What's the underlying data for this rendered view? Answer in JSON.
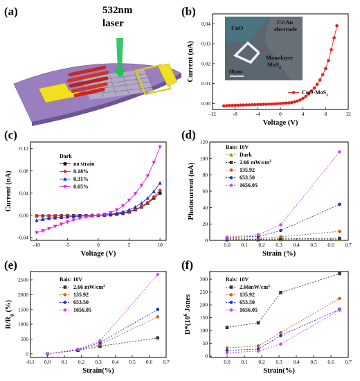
{
  "panel_labels": [
    "(a)",
    "(b)",
    "(c)",
    "(d)",
    "(e)",
    "(f)"
  ],
  "schematic": {
    "laser_label_1": "532nm",
    "laser_label_2": "laser",
    "colors": {
      "substrate": "#9a7fc0",
      "electrode": "#f0e020",
      "cuo": "#c8281e",
      "laser": "#22c05a"
    }
  },
  "inset": {
    "cuo": "CuO",
    "electrode_1": "Cr/Au",
    "electrode_2": "electrode",
    "mos2_1": "Monolayer",
    "mos2_2": "MoS",
    "mos2_sub": "2",
    "scale": "10μm"
  },
  "chart_data": [
    {
      "id": "b",
      "type": "line",
      "xlabel": "Voltage (V)",
      "ylabel": "Current (nA)",
      "xlim": [
        -12,
        12
      ],
      "ylim": [
        -0.003,
        0.045
      ],
      "xticks": [
        -12,
        -8,
        -4,
        0,
        4,
        8,
        12
      ],
      "yticks": [
        0.0,
        0.01,
        0.02,
        0.03,
        0.04
      ],
      "tick_decimals": 2,
      "legend_position": "bottom-right",
      "series": [
        {
          "name": "CuO-MoS",
          "name_sub": "2",
          "color": "#e8201a",
          "marker": "circle",
          "dash": false,
          "x": [
            -10,
            -9.5,
            -9,
            -8.5,
            -8,
            -7.5,
            -7,
            -6.5,
            -6,
            -5.5,
            -5,
            -4.5,
            -4,
            -3.5,
            -3,
            -2.5,
            -2,
            -1.5,
            -1,
            -0.5,
            0,
            0.5,
            1,
            1.5,
            2,
            2.5,
            3,
            3.5,
            4,
            4.5,
            5,
            5.5,
            6,
            6.5,
            7,
            7.5,
            8,
            8.5,
            9,
            9.5,
            10
          ],
          "y": [
            -0.0012,
            -0.0011,
            -0.001,
            -0.001,
            -0.0009,
            -0.0009,
            -0.0008,
            -0.0008,
            -0.0007,
            -0.0007,
            -0.0006,
            -0.0006,
            -0.0005,
            -0.0005,
            -0.0004,
            -0.0004,
            -0.0003,
            -0.0003,
            -0.0002,
            -0.0001,
            0,
            0.0001,
            0.0002,
            0.0003,
            0.0005,
            0.0008,
            0.0012,
            0.0018,
            0.0026,
            0.0036,
            0.0048,
            0.0062,
            0.0078,
            0.0096,
            0.0118,
            0.0145,
            0.0175,
            0.0215,
            0.027,
            0.033,
            0.039
          ]
        }
      ]
    },
    {
      "id": "c",
      "type": "line",
      "xlabel": "Voltage (V)",
      "ylabel": "Current (nA)",
      "xlim": [
        -11,
        11
      ],
      "ylim": [
        -0.045,
        0.132
      ],
      "xticks": [
        -10,
        -5,
        0,
        5,
        10
      ],
      "yticks": [
        -0.04,
        0.0,
        0.04,
        0.08,
        0.12
      ],
      "tick_decimals": 2,
      "legend_position": "top-left",
      "legend_title": "Dark",
      "series": [
        {
          "name": "no strain",
          "color": "#111111",
          "marker": "square",
          "dash": false,
          "x": [
            -10,
            -9,
            -8,
            -7,
            -6,
            -5,
            -4,
            -3,
            -2,
            -1,
            0,
            1,
            2,
            3,
            4,
            5,
            6,
            7,
            8,
            9,
            10
          ],
          "y": [
            -0.001,
            -0.001,
            -0.001,
            -0.001,
            -0.0008,
            -0.0007,
            -0.0006,
            -0.0005,
            -0.0004,
            -0.0002,
            0,
            0.0004,
            0.001,
            0.002,
            0.0035,
            0.006,
            0.01,
            0.015,
            0.022,
            0.031,
            0.04
          ]
        },
        {
          "name": "0.18%",
          "color": "#e8201a",
          "marker": "circle",
          "dash": false,
          "x": [
            -10,
            -9,
            -8,
            -7,
            -6,
            -5,
            -4,
            -3,
            -2,
            -1,
            0,
            1,
            2,
            3,
            4,
            5,
            6,
            7,
            8,
            9,
            10
          ],
          "y": [
            -0.001,
            -0.001,
            -0.001,
            -0.001,
            -0.0009,
            -0.0008,
            -0.0007,
            -0.0006,
            -0.0004,
            -0.0002,
            0,
            0.0005,
            0.0012,
            0.0025,
            0.0045,
            0.007,
            0.011,
            0.016,
            0.023,
            0.033,
            0.045
          ]
        },
        {
          "name": "0.31%",
          "color": "#1a2ad0",
          "marker": "triangle",
          "dash": false,
          "x": [
            -10,
            -9,
            -8,
            -7,
            -6,
            -5,
            -4,
            -3,
            -2,
            -1,
            0,
            1,
            2,
            3,
            4,
            5,
            6,
            7,
            8,
            9,
            10
          ],
          "y": [
            -0.009,
            -0.007,
            -0.0055,
            -0.0045,
            -0.0035,
            -0.0027,
            -0.002,
            -0.0014,
            -0.0009,
            -0.0004,
            0,
            0.0008,
            0.002,
            0.004,
            0.0065,
            0.01,
            0.015,
            0.022,
            0.031,
            0.043,
            0.058
          ]
        },
        {
          "name": "0.65%",
          "color": "#e020e8",
          "marker": "triangle-down",
          "dash": false,
          "x": [
            -10,
            -9,
            -8,
            -7,
            -6,
            -5,
            -4,
            -3,
            -2,
            -1,
            0,
            1,
            2,
            3,
            4,
            5,
            6,
            7,
            8,
            9,
            10
          ],
          "y": [
            -0.031,
            -0.028,
            -0.024,
            -0.02,
            -0.016,
            -0.012,
            -0.0085,
            -0.0055,
            -0.003,
            -0.0012,
            0,
            0.002,
            0.005,
            0.01,
            0.017,
            0.027,
            0.039,
            0.054,
            0.071,
            0.095,
            0.123
          ]
        }
      ]
    },
    {
      "id": "d",
      "type": "line",
      "xlabel": "Strain (%)",
      "ylabel": "Photocurrent (nA)",
      "xlim": [
        -0.1,
        0.7
      ],
      "ylim": [
        0,
        120
      ],
      "xticks": [
        0.0,
        0.1,
        0.2,
        0.3,
        0.4,
        0.5,
        0.6,
        0.7
      ],
      "yticks": [
        0,
        20,
        40,
        60,
        80,
        100,
        120
      ],
      "tick_decimals": 1,
      "ytick_decimals": 0,
      "legend_position": "top-left",
      "legend_title": "Bais: 10V",
      "series": [
        {
          "name": "Dark",
          "color": "#8a8a10",
          "marker": "triangle",
          "dash": true,
          "x": [
            0,
            0.18,
            0.31,
            0.65
          ],
          "y": [
            0.5,
            0.6,
            0.8,
            1.2
          ]
        },
        {
          "name": "2.66 mW/cm",
          "name_sup": "2",
          "color": "#333333",
          "marker": "square",
          "dash": true,
          "x": [
            0,
            0.18,
            0.31,
            0.65
          ],
          "y": [
            1,
            1.3,
            1.8,
            2.5
          ]
        },
        {
          "name": "135.92",
          "color": "#c06020",
          "marker": "circle",
          "dash": true,
          "x": [
            0,
            0.18,
            0.31,
            0.65
          ],
          "y": [
            2,
            2.8,
            4.5,
            11
          ]
        },
        {
          "name": "653.50",
          "color": "#1a2ad0",
          "marker": "circle",
          "dash": true,
          "x": [
            0,
            0.18,
            0.31,
            0.65
          ],
          "y": [
            3.5,
            5,
            12,
            44
          ]
        },
        {
          "name": "1656.05",
          "color": "#c050e8",
          "marker": "circle",
          "dash": true,
          "x": [
            0,
            0.18,
            0.31,
            0.65
          ],
          "y": [
            4,
            7,
            19,
            108
          ]
        }
      ]
    },
    {
      "id": "e",
      "type": "line",
      "xlabel": "Strain(%)",
      "ylabel": "R/R",
      "ylabel_sub": "0",
      "ylabel_suffix": " (%)",
      "xlim": [
        -0.1,
        0.7
      ],
      "ylim": [
        -120,
        2780
      ],
      "xticks": [
        -0.1,
        0.0,
        0.1,
        0.2,
        0.3,
        0.4,
        0.5,
        0.6,
        0.7
      ],
      "yticks": [
        0,
        500,
        1000,
        1500,
        2000,
        2500
      ],
      "tick_decimals": 1,
      "ytick_decimals": 0,
      "legend_position": "top-left",
      "legend_title": "Bais: 10V",
      "series": [
        {
          "name": "2.66 mW/cm",
          "name_sup": "2",
          "color": "#333333",
          "marker": "square",
          "dash": true,
          "x": [
            0,
            0.18,
            0.31,
            0.65
          ],
          "y": [
            0,
            120,
            260,
            540
          ]
        },
        {
          "name": "135.92",
          "color": "#c06020",
          "marker": "circle",
          "dash": true,
          "x": [
            0,
            0.18,
            0.31,
            0.65
          ],
          "y": [
            0,
            140,
            320,
            1250
          ]
        },
        {
          "name": "653.50",
          "color": "#1a2ad0",
          "marker": "circle",
          "dash": true,
          "x": [
            0,
            0.18,
            0.31,
            0.65
          ],
          "y": [
            0,
            145,
            380,
            1500
          ]
        },
        {
          "name": "1656.05",
          "color": "#c050e8",
          "marker": "circle",
          "dash": true,
          "x": [
            0,
            0.18,
            0.31,
            0.65
          ],
          "y": [
            0,
            160,
            440,
            2680
          ]
        }
      ]
    },
    {
      "id": "f",
      "type": "line",
      "xlabel": "Strain(%)",
      "ylabel": "D*(10",
      "ylabel_sup": "6",
      "ylabel_suffix": " Jones",
      "xlim": [
        -0.1,
        0.7
      ],
      "ylim": [
        -5,
        330
      ],
      "xticks": [
        0.0,
        0.1,
        0.2,
        0.3,
        0.4,
        0.5,
        0.6,
        0.7
      ],
      "yticks": [
        0,
        50,
        100,
        150,
        200,
        250,
        300
      ],
      "tick_decimals": 1,
      "ytick_decimals": 0,
      "legend_position": "top-left",
      "legend_title": "Bais: 10V",
      "series": [
        {
          "name": "2.66mW/cm",
          "name_sup": "2",
          "color": "#333333",
          "marker": "square",
          "dash": true,
          "x": [
            0,
            0.18,
            0.31,
            0.65
          ],
          "y": [
            112,
            130,
            248,
            322
          ]
        },
        {
          "name": "135.92",
          "color": "#c06020",
          "marker": "circle",
          "dash": true,
          "x": [
            0,
            0.18,
            0.31,
            0.65
          ],
          "y": [
            32,
            40,
            92,
            225
          ]
        },
        {
          "name": "653.50",
          "color": "#1a2ad0",
          "marker": "circle",
          "dash": true,
          "x": [
            0,
            0.18,
            0.31,
            0.65
          ],
          "y": [
            22,
            28,
            80,
            183
          ]
        },
        {
          "name": "1656.05",
          "color": "#c050e8",
          "marker": "circle",
          "dash": true,
          "x": [
            0,
            0.18,
            0.31,
            0.65
          ],
          "y": [
            13,
            20,
            47,
            180
          ]
        }
      ]
    }
  ]
}
